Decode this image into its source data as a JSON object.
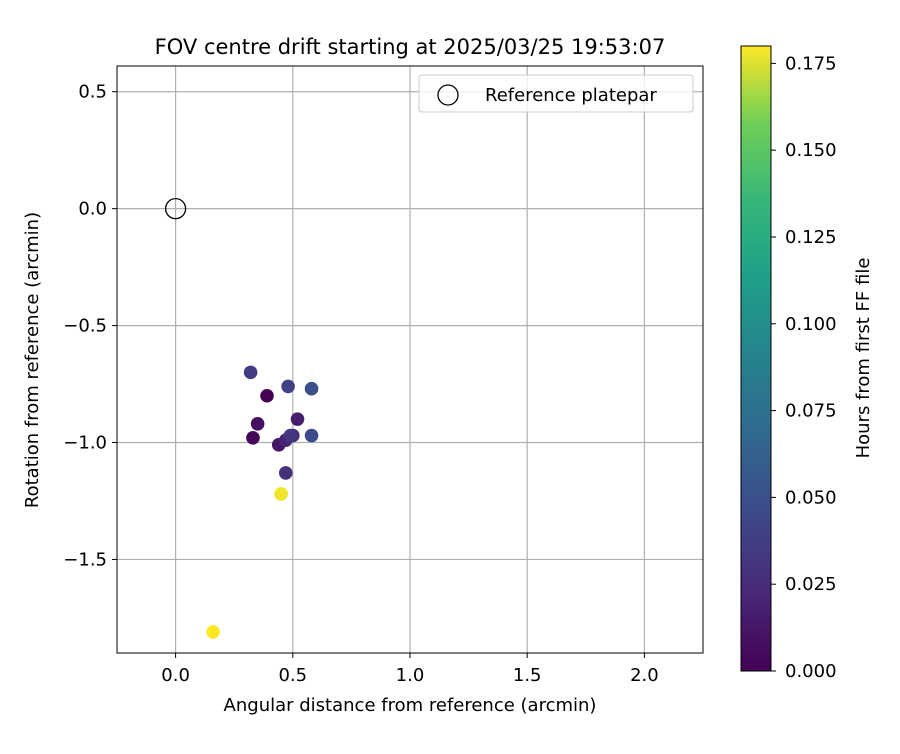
{
  "chart_data": {
    "type": "scatter",
    "title": "FOV centre drift starting at 2025/03/25 19:53:07",
    "xlabel": "Angular distance from reference (arcmin)",
    "ylabel": "Rotation from reference (arcmin)",
    "xlim": [
      -0.25,
      2.25
    ],
    "ylim": [
      -1.9,
      0.61
    ],
    "xticks": [
      0.0,
      0.5,
      1.0,
      1.5,
      2.0
    ],
    "xtick_labels": [
      "0.0",
      "0.5",
      "1.0",
      "1.5",
      "2.0"
    ],
    "yticks": [
      0.5,
      0.0,
      -0.5,
      -1.0,
      -1.5
    ],
    "ytick_labels": [
      "0.5",
      "0.0",
      "−0.5",
      "−1.0",
      "−1.5"
    ],
    "grid": true,
    "legend": {
      "placement": "top-right",
      "entries": [
        {
          "label": "Reference platepar",
          "marker": "open-circle",
          "color": "#000000"
        }
      ]
    },
    "reference_point": {
      "name": "Reference platepar",
      "x": 0.0,
      "y": 0.0
    },
    "colorbar": {
      "label": "Hours from first FF file",
      "colormap": "viridis",
      "range": [
        0.0,
        0.18
      ],
      "ticks": [
        0.0,
        0.025,
        0.05,
        0.075,
        0.1,
        0.125,
        0.15,
        0.175
      ],
      "tick_labels": [
        "0.000",
        "0.025",
        "0.050",
        "0.075",
        "0.100",
        "0.125",
        "0.150",
        "0.175"
      ]
    },
    "points": [
      {
        "x": 0.39,
        "y": -0.8,
        "c": 0.0
      },
      {
        "x": 0.33,
        "y": -0.98,
        "c": 0.004
      },
      {
        "x": 0.35,
        "y": -0.92,
        "c": 0.008
      },
      {
        "x": 0.44,
        "y": -1.01,
        "c": 0.012
      },
      {
        "x": 0.52,
        "y": -0.9,
        "c": 0.016
      },
      {
        "x": 0.47,
        "y": -0.99,
        "c": 0.02
      },
      {
        "x": 0.5,
        "y": -0.97,
        "c": 0.024
      },
      {
        "x": 0.47,
        "y": -1.13,
        "c": 0.028
      },
      {
        "x": 0.49,
        "y": -0.97,
        "c": 0.032
      },
      {
        "x": 0.32,
        "y": -0.7,
        "c": 0.036
      },
      {
        "x": 0.48,
        "y": -0.76,
        "c": 0.04
      },
      {
        "x": 0.58,
        "y": -0.97,
        "c": 0.046
      },
      {
        "x": 0.58,
        "y": -0.77,
        "c": 0.05
      },
      {
        "x": 0.45,
        "y": -1.22,
        "c": 0.178
      },
      {
        "x": 0.16,
        "y": -1.81,
        "c": 0.18
      }
    ]
  }
}
